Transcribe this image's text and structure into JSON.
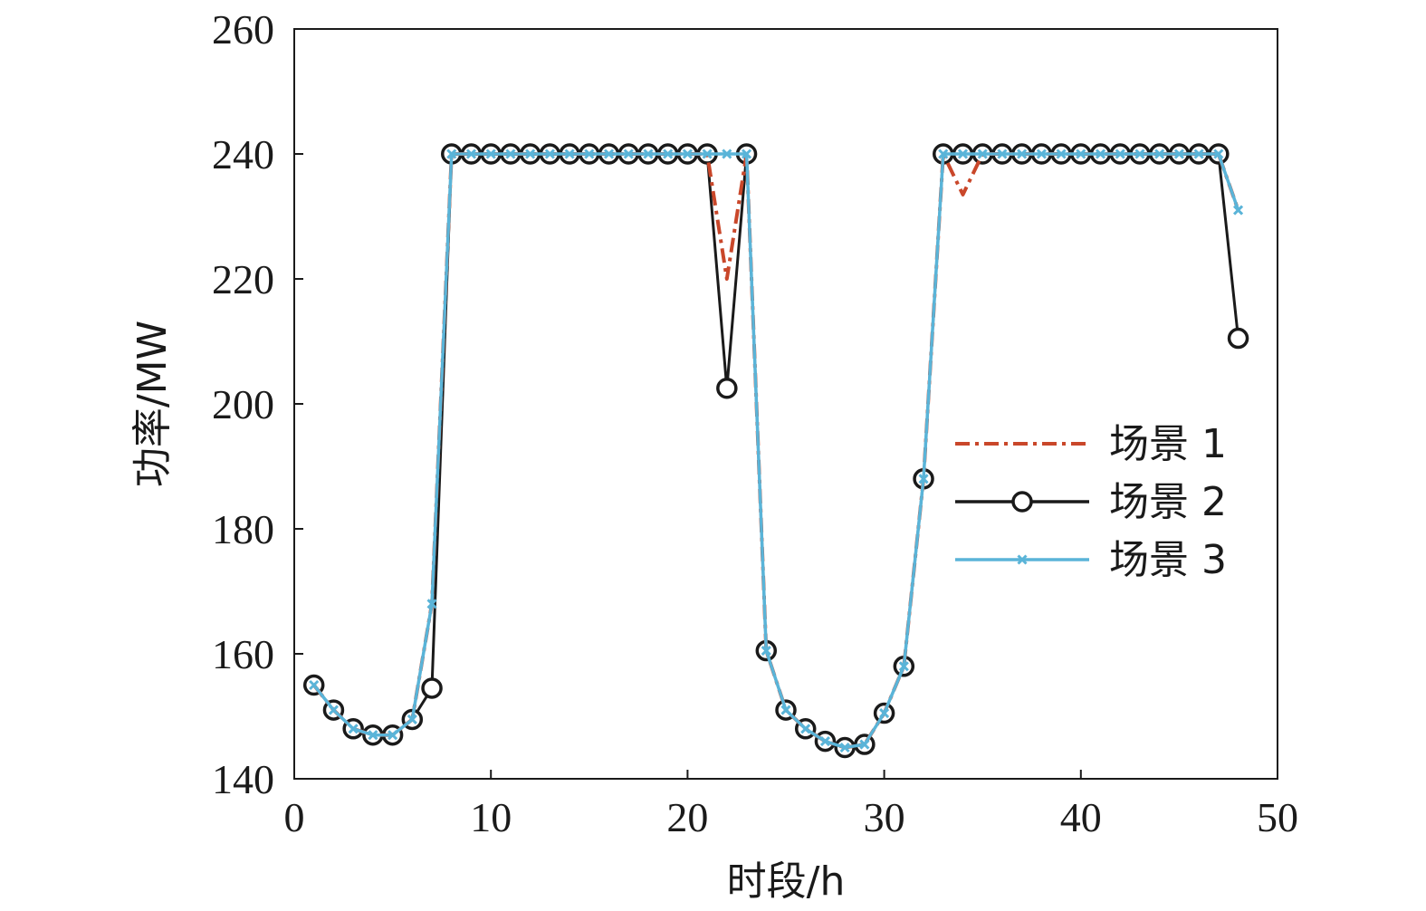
{
  "chart_data": {
    "type": "line",
    "title": "",
    "xlabel": "时段/h",
    "ylabel": "功率/MW",
    "xlim": [
      0,
      50
    ],
    "ylim": [
      140,
      260
    ],
    "xticks": [
      "0",
      "10",
      "20",
      "30",
      "40",
      "50"
    ],
    "yticks": [
      "140",
      "160",
      "180",
      "200",
      "220",
      "240",
      "260"
    ],
    "grid": false,
    "legend_position": "right-middle",
    "x": [
      1,
      2,
      3,
      4,
      5,
      6,
      7,
      8,
      9,
      10,
      11,
      12,
      13,
      14,
      15,
      16,
      17,
      18,
      19,
      20,
      21,
      22,
      23,
      24,
      25,
      26,
      27,
      28,
      29,
      30,
      31,
      32,
      33,
      34,
      35,
      36,
      37,
      38,
      39,
      40,
      41,
      42,
      43,
      44,
      45,
      46,
      47,
      48
    ],
    "series": [
      {
        "name": "场景 1",
        "color": "#c9472a",
        "style": "dash-dot",
        "marker": "none",
        "values": [
          155,
          151,
          148,
          147,
          147,
          149.5,
          168,
          240,
          240,
          240,
          240,
          240,
          240,
          240,
          240,
          240,
          240,
          240,
          240,
          240,
          240,
          220,
          240,
          160.5,
          151,
          148,
          146,
          145,
          145.5,
          150.5,
          158,
          188,
          240,
          233.5,
          240,
          240,
          240,
          240,
          240,
          240,
          240,
          240,
          240,
          240,
          240,
          240,
          240,
          231
        ]
      },
      {
        "name": "场景 2",
        "color": "#1a1a1a",
        "style": "solid",
        "marker": "circle",
        "values": [
          155,
          151,
          148,
          147,
          147,
          149.5,
          154.5,
          240,
          240,
          240,
          240,
          240,
          240,
          240,
          240,
          240,
          240,
          240,
          240,
          240,
          240,
          202.5,
          240,
          160.5,
          151,
          148,
          146,
          145,
          145.5,
          150.5,
          158,
          188,
          240,
          240,
          240,
          240,
          240,
          240,
          240,
          240,
          240,
          240,
          240,
          240,
          240,
          240,
          240,
          210.5
        ]
      },
      {
        "name": "场景 3",
        "color": "#5ab4d8",
        "style": "solid",
        "marker": "x",
        "values": [
          155,
          151,
          148,
          147,
          147,
          149.5,
          168,
          240,
          240,
          240,
          240,
          240,
          240,
          240,
          240,
          240,
          240,
          240,
          240,
          240,
          240,
          240,
          240,
          160.5,
          151,
          148,
          146,
          145,
          145.5,
          150.5,
          158,
          188,
          240,
          240,
          240,
          240,
          240,
          240,
          240,
          240,
          240,
          240,
          240,
          240,
          240,
          240,
          240,
          231
        ]
      }
    ]
  }
}
